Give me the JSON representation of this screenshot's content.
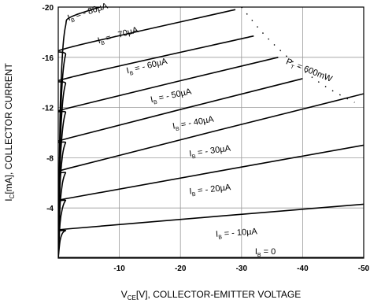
{
  "chart_data": {
    "type": "line",
    "xlabel": "V",
    "xlabel_sub": "CE",
    "xlabel_rest": "[V], COLLECTOR-EMITTER VOLTAGE",
    "ylabel": "I",
    "ylabel_sub": "C",
    "ylabel_rest": "[mA], COLLECTOR CURRENT",
    "xlim": [
      0,
      -50
    ],
    "ylim": [
      0,
      -20
    ],
    "x_ticks": [
      -10,
      -20,
      -30,
      -40,
      -50
    ],
    "y_ticks": [
      -20,
      -16,
      -12,
      -8,
      -4
    ],
    "x_tick_labels": [
      "-10",
      "-20",
      "-30",
      "-40",
      "-50"
    ],
    "y_tick_labels": [
      "-20",
      "-16",
      "-12",
      "-8",
      "-4"
    ],
    "grid": true,
    "series": [
      {
        "name": "I_B = 0",
        "base": "0",
        "x": [
          0,
          -50
        ],
        "y": [
          -0.05,
          -0.05
        ]
      },
      {
        "name": "I_B = -10µA",
        "base": "- 10µA",
        "x": [
          0,
          -0.3,
          -0.7,
          -1.2,
          -2,
          -50
        ],
        "y": [
          0,
          -1.4,
          -2.0,
          -2.2,
          -2.35,
          -4.3
        ]
      },
      {
        "name": "I_B = -20µA",
        "base": "- 20µA",
        "x": [
          0,
          -0.3,
          -0.7,
          -1.2,
          -2,
          -50
        ],
        "y": [
          0,
          -2.8,
          -4.0,
          -4.6,
          -4.8,
          -9.0
        ]
      },
      {
        "name": "I_B = -30µA",
        "base": "- 30µA",
        "x": [
          0,
          -0.3,
          -0.7,
          -1.2,
          -2,
          -50
        ],
        "y": [
          0,
          -4.2,
          -6.0,
          -6.8,
          -7.2,
          -13.1
        ]
      },
      {
        "name": "I_B = -40µA",
        "base": "- 40µA",
        "x": [
          0,
          -0.3,
          -0.7,
          -1.2,
          -2,
          -40
        ],
        "y": [
          0,
          -5.8,
          -8.2,
          -9.2,
          -9.6,
          -14.3
        ]
      },
      {
        "name": "I_B = -50µA",
        "base": "- 50µA",
        "x": [
          0,
          -0.3,
          -0.7,
          -1.2,
          -2,
          -36
        ],
        "y": [
          0,
          -7.2,
          -10.2,
          -11.6,
          -12.0,
          -16.0
        ]
      },
      {
        "name": "I_B = -60µA",
        "base": "- 60µA",
        "x": [
          0,
          -0.3,
          -0.7,
          -1.2,
          -2,
          -32
        ],
        "y": [
          0,
          -8.6,
          -12.3,
          -13.9,
          -14.4,
          -17.7
        ]
      },
      {
        "name": "I_B = -70µA",
        "base": "- 70µA",
        "x": [
          0,
          -0.3,
          -0.7,
          -1.2,
          -2,
          -29
        ],
        "y": [
          0,
          -10.0,
          -14.3,
          -16.2,
          -16.8,
          -19.8
        ]
      },
      {
        "name": "I_B = -80µA",
        "base": "- 80µA",
        "x": [
          0,
          -0.3,
          -0.7,
          -1.2,
          -2,
          -6.8
        ],
        "y": [
          0,
          -11.4,
          -16.3,
          -18.5,
          -19.2,
          -20.0
        ]
      }
    ],
    "power_curve": {
      "label_main": "P",
      "label_sub": "T",
      "label_rest": " = 600mW",
      "x": [
        -30,
        -33,
        -36,
        -40,
        -44,
        -48.5
      ],
      "y": [
        -20,
        -18.2,
        -16.7,
        -15.0,
        -13.6,
        -12.4
      ]
    },
    "label_prefix": "I",
    "label_prefix_sub": "B",
    "label_equals": " = ",
    "labels": [
      {
        "series": "I_B = -80µA",
        "x": -1.7,
        "y": -18.9,
        "angle": -18
      },
      {
        "series": "I_B = -70µA",
        "x": -6.6,
        "y": -17.1,
        "angle": -16
      },
      {
        "series": "I_B = -60µA",
        "x": -11.3,
        "y": -14.7,
        "angle": -14
      },
      {
        "series": "I_B = -50µA",
        "x": -15.2,
        "y": -12.4,
        "angle": -12
      },
      {
        "series": "I_B = -40µA",
        "x": -18.8,
        "y": -10.3,
        "angle": -10
      },
      {
        "series": "I_B = -30µA",
        "x": -21.5,
        "y": -8.1,
        "angle": -8
      },
      {
        "series": "I_B = -20µA",
        "x": -21.5,
        "y": -5.1,
        "angle": -6
      },
      {
        "series": "I_B = -10µA",
        "x": -25.8,
        "y": -1.7,
        "angle": -4
      },
      {
        "series": "I_B = 0",
        "x": -32.2,
        "y": -0.3,
        "angle": 0
      }
    ],
    "power_label_pos": {
      "x": -37.2,
      "y": -15.5,
      "angle": 22
    }
  }
}
